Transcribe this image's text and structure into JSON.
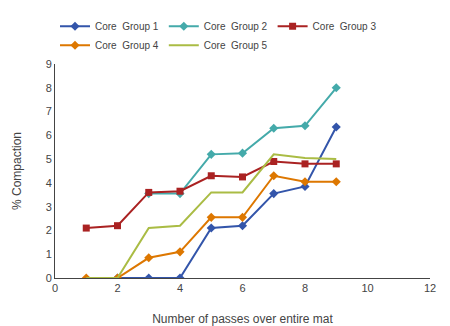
{
  "chart_data": {
    "type": "line",
    "xlabel": "Number of passes over entire mat",
    "ylabel": "% Compaction",
    "xlim": [
      0,
      12
    ],
    "ylim": [
      0,
      9
    ],
    "xticks": [
      0,
      2,
      4,
      6,
      8,
      10,
      12
    ],
    "yticks": [
      0,
      1,
      2,
      3,
      4,
      5,
      6,
      7,
      8,
      9
    ],
    "grid": false,
    "legend": "upper left",
    "series": [
      {
        "name": "Core  Group 1",
        "color": "#3355AA",
        "marker": "diamond",
        "x": [
          2,
          3,
          4,
          5,
          6,
          7,
          8,
          9
        ],
        "values": [
          0.0,
          0.0,
          0.0,
          2.1,
          2.2,
          3.55,
          3.85,
          6.35
        ]
      },
      {
        "name": "Core  Group 2",
        "color": "#44AAAA",
        "marker": "diamond",
        "x": [
          3,
          4,
          5,
          6,
          7,
          8,
          9
        ],
        "values": [
          3.55,
          3.55,
          5.2,
          5.25,
          6.3,
          6.4,
          8.0
        ]
      },
      {
        "name": "Core  Group 3",
        "color": "#AA2222",
        "marker": "square",
        "x": [
          1,
          2,
          3,
          4,
          5,
          6,
          7,
          8,
          9
        ],
        "values": [
          2.1,
          2.2,
          3.6,
          3.65,
          4.3,
          4.25,
          4.9,
          4.8,
          4.8
        ]
      },
      {
        "name": "Core  Group 4",
        "color": "#DD7700",
        "marker": "diamond",
        "x": [
          1,
          2,
          3,
          4,
          5,
          6,
          7,
          8,
          9
        ],
        "values": [
          0.0,
          0.0,
          0.85,
          1.1,
          2.55,
          2.55,
          4.3,
          4.05,
          4.05
        ]
      },
      {
        "name": "Core  Group 5",
        "color": "#AABC44",
        "marker": "none",
        "x": [
          1,
          2,
          3,
          4,
          5,
          6,
          7,
          8,
          9
        ],
        "values": [
          0.0,
          0.0,
          2.1,
          2.2,
          3.6,
          3.6,
          5.2,
          5.05,
          5.0
        ]
      }
    ]
  }
}
